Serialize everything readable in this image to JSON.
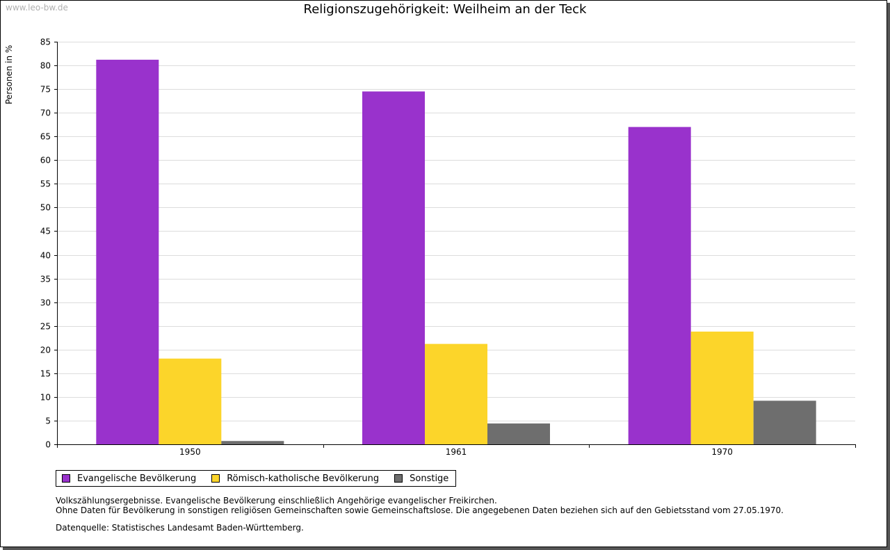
{
  "watermark": "www.leo-bw.de",
  "chart_data": {
    "type": "bar",
    "title": "Religionszugehörigkeit: Weilheim an der Teck",
    "ylabel": "Personen in %",
    "xlabel": "",
    "categories": [
      "1950",
      "1961",
      "1970"
    ],
    "ylim": [
      0,
      85
    ],
    "yticks": [
      0,
      5,
      10,
      15,
      20,
      25,
      30,
      35,
      40,
      45,
      50,
      55,
      60,
      65,
      70,
      75,
      80,
      85
    ],
    "grid": true,
    "legend_position": "bottom-left",
    "series": [
      {
        "name": "Evangelische Bevölkerung",
        "color": "#9932cc",
        "values": [
          81.2,
          74.5,
          67.0
        ]
      },
      {
        "name": "Römisch-katholische Bevölkerung",
        "color": "#fcd52a",
        "values": [
          18.1,
          21.2,
          23.8
        ]
      },
      {
        "name": "Sonstige",
        "color": "#6e6e6e",
        "values": [
          0.7,
          4.4,
          9.2
        ]
      }
    ]
  },
  "notes": {
    "line1": "Volkszählungsergebnisse. Evangelische Bevölkerung einschließlich Angehörige evangelischer Freikirchen.",
    "line2": "Ohne Daten für Bevölkerung in sonstigen religiösen Gemeinschaften sowie Gemeinschaftslose. Die angegebenen Daten beziehen sich auf den Gebietsstand vom 27.05.1970.",
    "source": "Datenquelle: Statistisches Landesamt Baden-Württemberg."
  }
}
